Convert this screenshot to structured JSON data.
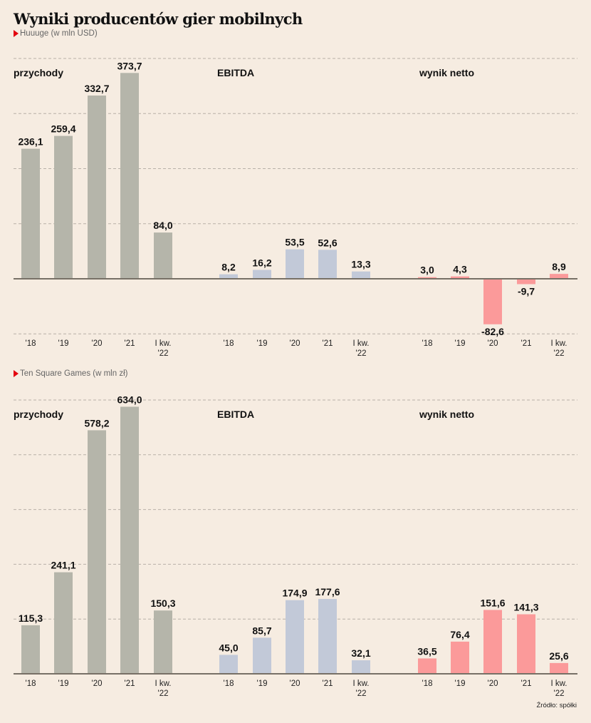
{
  "title": "Wyniki producentów gier mobilnych",
  "source": "Źródło: spółki",
  "colors": {
    "background": "#f6ece1",
    "revenue": "#b5b5aa",
    "ebitda": "#c2c9d8",
    "net": "#fb9a9a",
    "baseline": "#777066",
    "grid": "#b8b0a8",
    "accent_marker": "#e3000f"
  },
  "chart_data": [
    {
      "type": "bar",
      "title": "Huuuge (w mln USD)",
      "subtitle": "Huuuge (w mln USD)",
      "categories": [
        "'18",
        "'19",
        "'20",
        "'21",
        "I kw. '22"
      ],
      "tick_labels": [
        [
          "'18"
        ],
        [
          "'19"
        ],
        [
          "'20"
        ],
        [
          "'21"
        ],
        [
          "I kw.",
          "'22"
        ]
      ],
      "ylim": [
        -100,
        400
      ],
      "gridlines": [
        -100,
        100,
        200,
        300,
        400
      ],
      "grid": true,
      "series": [
        {
          "name": "przychody",
          "color_key": "revenue",
          "values": [
            236.1,
            259.4,
            332.7,
            373.7,
            84.0
          ],
          "labels": [
            "236,1",
            "259,4",
            "332,7",
            "373,7",
            "84,0"
          ]
        },
        {
          "name": "EBITDA",
          "color_key": "ebitda",
          "values": [
            8.2,
            16.2,
            53.5,
            52.6,
            13.3
          ],
          "labels": [
            "8,2",
            "16,2",
            "53,5",
            "52,6",
            "13,3"
          ]
        },
        {
          "name": "wynik netto",
          "color_key": "net",
          "values": [
            3.0,
            4.3,
            -82.6,
            -9.7,
            8.9
          ],
          "labels": [
            "3,0",
            "4,3",
            "-82,6",
            "-9,7",
            "8,9"
          ]
        }
      ]
    },
    {
      "type": "bar",
      "title": "Ten Square Games (w mln zł)",
      "subtitle": "Ten Square Games (w mln zł)",
      "categories": [
        "'18",
        "'19",
        "'20",
        "'21",
        "I kw. '22"
      ],
      "tick_labels": [
        [
          "'18"
        ],
        [
          "'19"
        ],
        [
          "'20"
        ],
        [
          "'21"
        ],
        [
          "I kw.",
          "'22"
        ]
      ],
      "ylim": [
        0,
        650
      ],
      "gridlines": [
        130,
        260,
        390,
        520,
        650
      ],
      "grid": true,
      "series": [
        {
          "name": "przychody",
          "color_key": "revenue",
          "values": [
            115.3,
            241.1,
            578.2,
            634.0,
            150.3
          ],
          "labels": [
            "115,3",
            "241,1",
            "578,2",
            "634,0",
            "150,3"
          ]
        },
        {
          "name": "EBITDA",
          "color_key": "ebitda",
          "values": [
            45.0,
            85.7,
            174.9,
            177.6,
            32.1
          ],
          "labels": [
            "45,0",
            "85,7",
            "174,9",
            "177,6",
            "32,1"
          ]
        },
        {
          "name": "wynik netto",
          "color_key": "net",
          "values": [
            36.5,
            76.4,
            151.6,
            141.3,
            25.6
          ],
          "labels": [
            "36,5",
            "76,4",
            "151,6",
            "141,3",
            "25,6"
          ]
        }
      ]
    }
  ]
}
